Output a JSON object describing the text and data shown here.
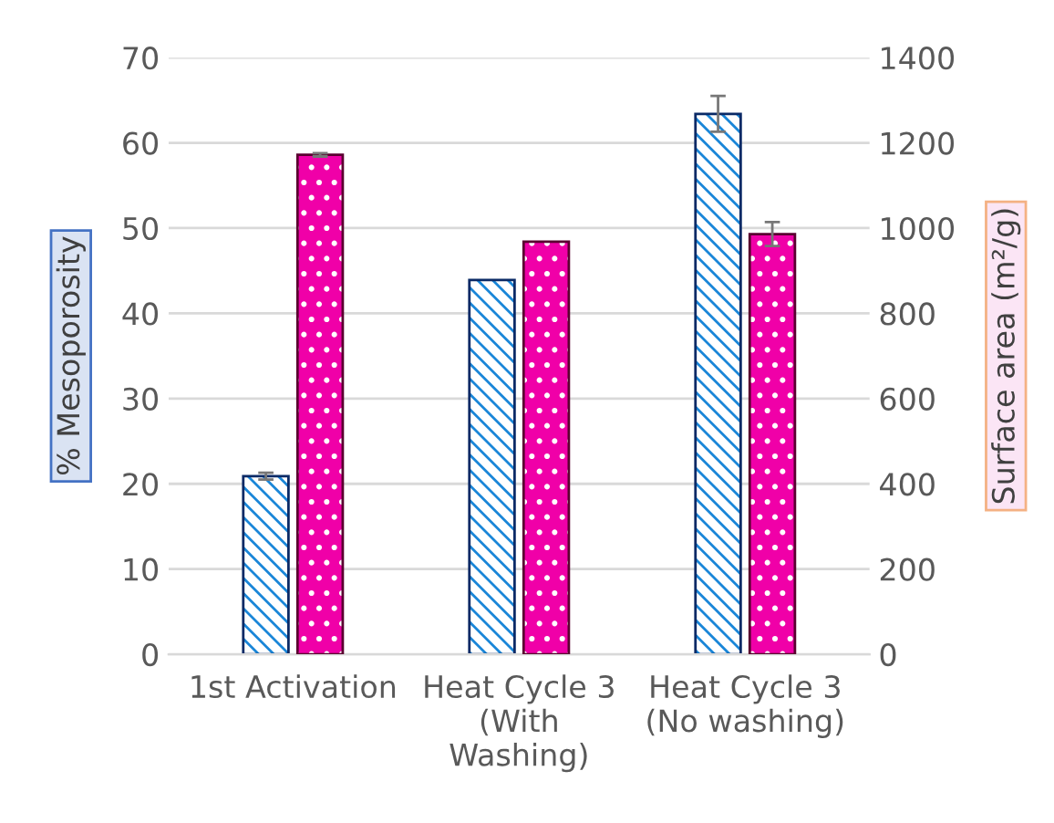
{
  "chart_data": {
    "type": "bar",
    "ylabel": "% Mesoporosity",
    "y2label": "Surface area (m²/g)",
    "categories": [
      "1st Activation",
      "Heat Cycle 3\n(With\nWashing)",
      "Heat Cycle 3\n(No washing)"
    ],
    "series": [
      {
        "color": "#1a86d8",
        "values": [
          20.9,
          43.9,
          63.4
        ],
        "errors": [
          0.4,
          null,
          2.1
        ]
      },
      {
        "color": "#f000a8",
        "axis": "y2",
        "values": [
          1172,
          968,
          986
        ],
        "errors": [
          4,
          null,
          28
        ]
      }
    ],
    "ylim": [
      0,
      70
    ],
    "yticks": [
      0,
      10,
      20,
      30,
      40,
      50,
      60,
      70
    ],
    "y2lim": [
      0,
      1400
    ],
    "y2ticks": [
      0,
      200,
      400,
      600,
      800,
      1000,
      1200,
      1400
    ],
    "grid": "y"
  }
}
